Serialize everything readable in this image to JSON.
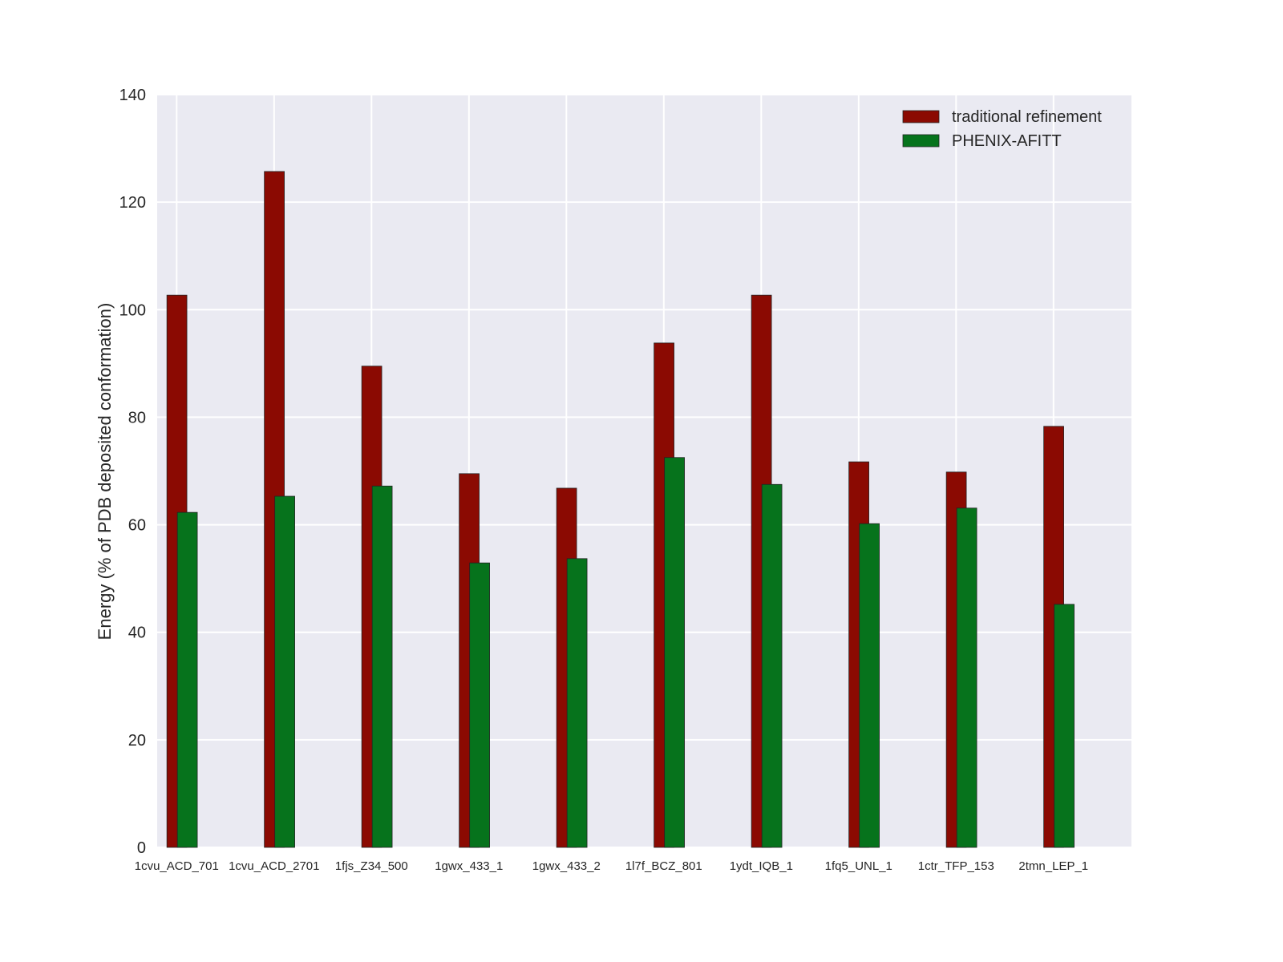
{
  "chart_data": {
    "type": "bar",
    "title": "",
    "xlabel": "",
    "ylabel": "Energy (% of PDB deposited conformation)",
    "ylim": [
      0,
      140
    ],
    "yticks": [
      0,
      20,
      40,
      60,
      80,
      100,
      120,
      140
    ],
    "grid": true,
    "legend_placement": "top-right",
    "categories": [
      "1cvu_ACD_701",
      "1cvu_ACD_2701",
      "1fjs_Z34_500",
      "1gwx_433_1",
      "1gwx_433_2",
      "1l7f_BCZ_801",
      "1ydt_IQB_1",
      "1fq5_UNL_1",
      "1ctr_TFP_153",
      "2tmn_LEP_1"
    ],
    "series": [
      {
        "name": "traditional refinement",
        "color": "#8b0a02",
        "values": [
          102.7,
          125.7,
          89.5,
          69.5,
          66.8,
          93.8,
          102.7,
          71.7,
          69.8,
          78.3
        ]
      },
      {
        "name": "PHENIX-AFITT",
        "color": "#06731c",
        "values": [
          62.3,
          65.3,
          67.2,
          52.9,
          53.7,
          72.5,
          67.5,
          60.2,
          63.1,
          45.2
        ]
      }
    ],
    "background_color": "#eaeaf2"
  }
}
